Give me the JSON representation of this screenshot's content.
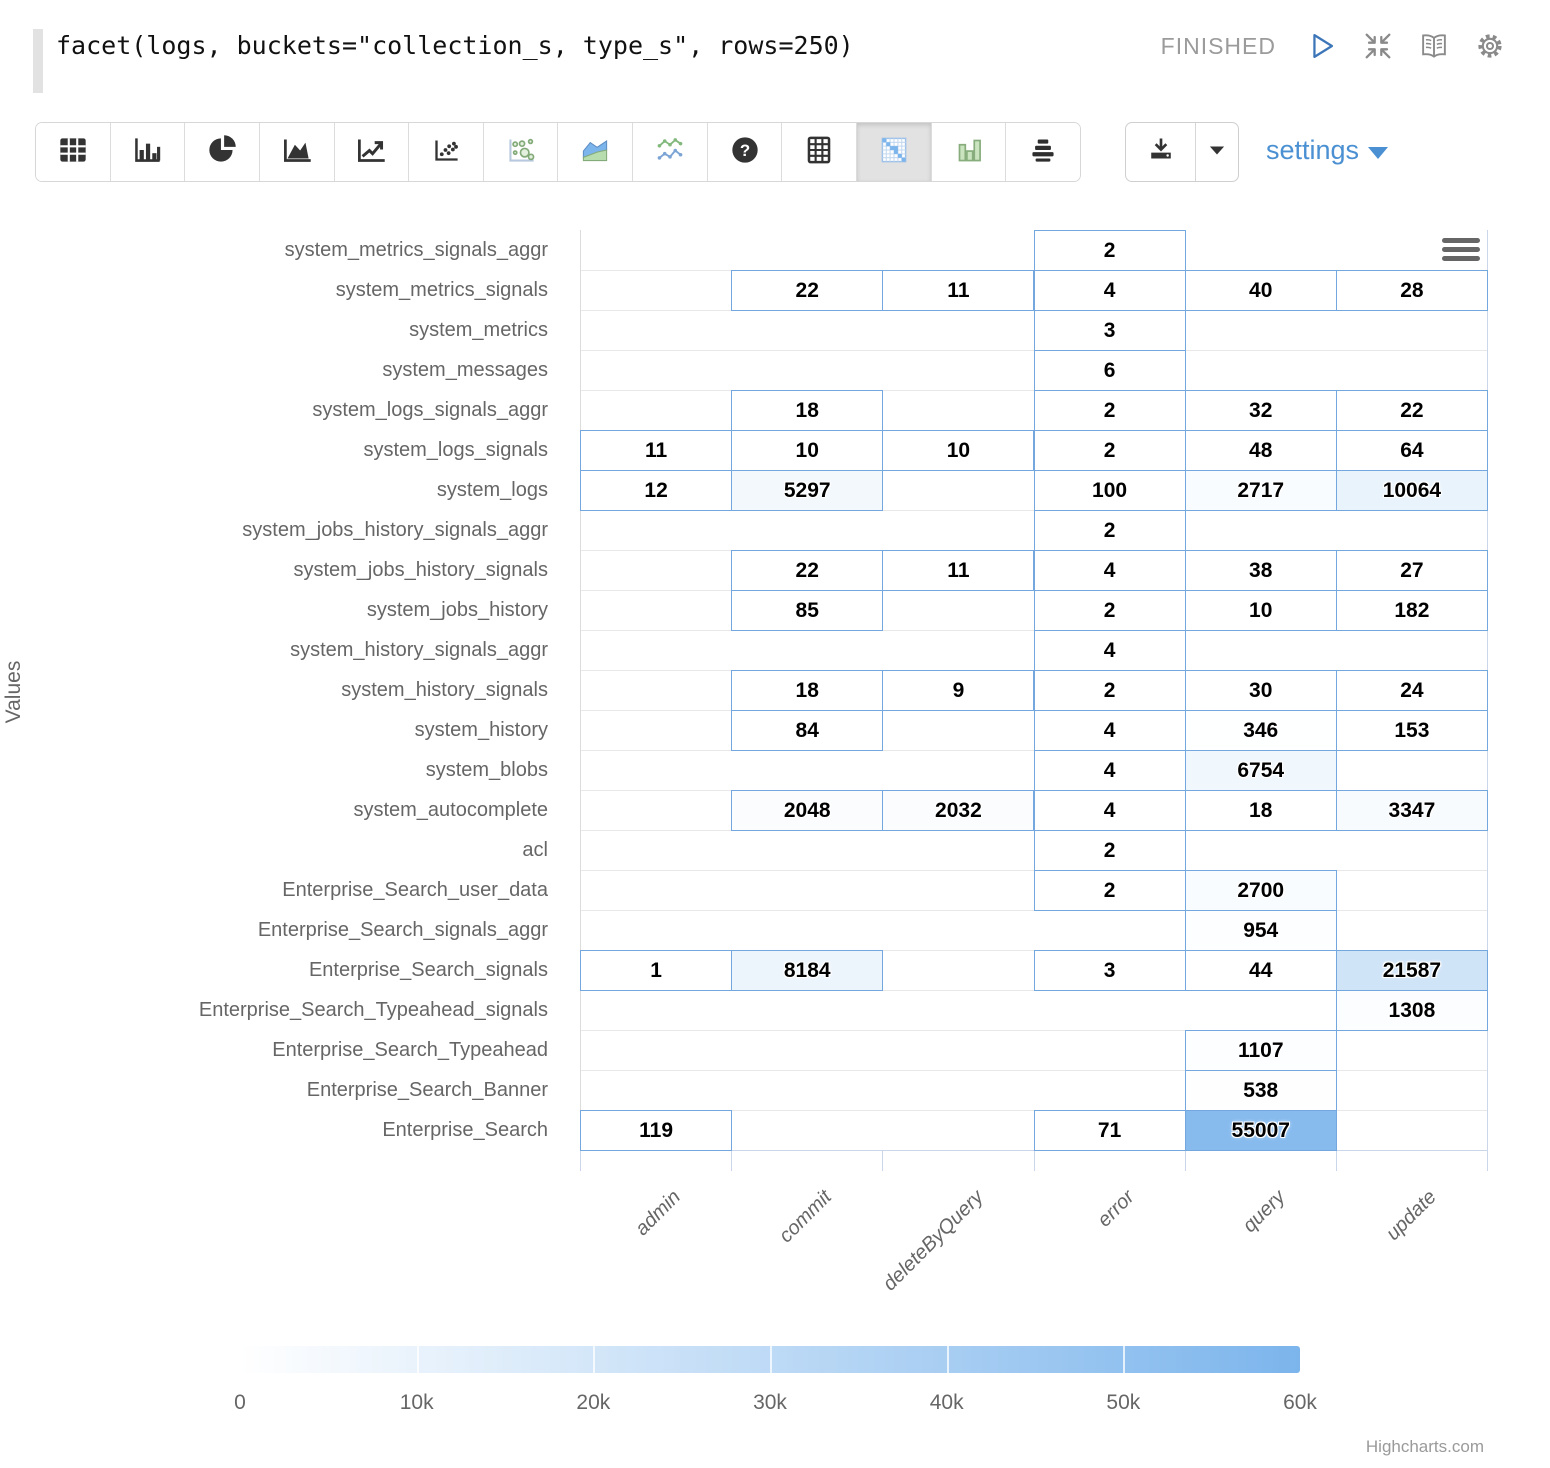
{
  "editor": {
    "query": "facet(logs, buckets=\"collection_s, type_s\", rows=250)",
    "status": "FINISHED",
    "actions": [
      {
        "icon": "play-icon"
      },
      {
        "icon": "shrink-icon"
      },
      {
        "icon": "book-icon"
      },
      {
        "icon": "gear-icon"
      }
    ]
  },
  "toolbar": {
    "chart_types": [
      {
        "icon": "table-icon",
        "selected": false
      },
      {
        "icon": "bar-chart-icon",
        "selected": false
      },
      {
        "icon": "pie-chart-icon",
        "selected": false
      },
      {
        "icon": "area-chart-icon",
        "selected": false
      },
      {
        "icon": "line-chart-icon",
        "selected": false
      },
      {
        "icon": "scatter-chart-icon",
        "selected": false
      },
      {
        "icon": "bubble-chart-icon",
        "selected": false
      },
      {
        "icon": "stacked-area-chart-icon",
        "selected": false
      },
      {
        "icon": "spline-chart-icon",
        "selected": false
      },
      {
        "icon": "help-icon",
        "selected": false
      },
      {
        "icon": "pivot-table-icon",
        "selected": false
      },
      {
        "icon": "heatmap-icon",
        "selected": true
      },
      {
        "icon": "column-chart-icon",
        "selected": false
      },
      {
        "icon": "funnel-chart-icon",
        "selected": false
      }
    ],
    "download": {
      "icon": "download-icon",
      "dropdown_icon": "caret-down-icon"
    },
    "settings_label": "settings"
  },
  "chart_data": {
    "type": "heatmap",
    "title": "",
    "xlabel": "",
    "ylabel": "Values",
    "credits": "Highcharts.com",
    "columns": [
      "admin",
      "commit",
      "deleteByQuery",
      "error",
      "query",
      "update"
    ],
    "rows_top_to_bottom": [
      {
        "name": "system_metrics_signals_aggr",
        "values": [
          null,
          null,
          null,
          2,
          null,
          null
        ]
      },
      {
        "name": "system_metrics_signals",
        "values": [
          null,
          22,
          11,
          4,
          40,
          28
        ]
      },
      {
        "name": "system_metrics",
        "values": [
          null,
          null,
          null,
          3,
          null,
          null
        ]
      },
      {
        "name": "system_messages",
        "values": [
          null,
          null,
          null,
          6,
          null,
          null
        ]
      },
      {
        "name": "system_logs_signals_aggr",
        "values": [
          null,
          18,
          null,
          2,
          32,
          22
        ]
      },
      {
        "name": "system_logs_signals",
        "values": [
          11,
          10,
          10,
          2,
          48,
          64
        ]
      },
      {
        "name": "system_logs",
        "values": [
          12,
          5297,
          null,
          100,
          2717,
          10064
        ]
      },
      {
        "name": "system_jobs_history_signals_aggr",
        "values": [
          null,
          null,
          null,
          2,
          null,
          null
        ]
      },
      {
        "name": "system_jobs_history_signals",
        "values": [
          null,
          22,
          11,
          4,
          38,
          27
        ]
      },
      {
        "name": "system_jobs_history",
        "values": [
          null,
          85,
          null,
          2,
          10,
          182
        ]
      },
      {
        "name": "system_history_signals_aggr",
        "values": [
          null,
          null,
          null,
          4,
          null,
          null
        ]
      },
      {
        "name": "system_history_signals",
        "values": [
          null,
          18,
          9,
          2,
          30,
          24
        ]
      },
      {
        "name": "system_history",
        "values": [
          null,
          84,
          null,
          4,
          346,
          153
        ]
      },
      {
        "name": "system_blobs",
        "values": [
          null,
          null,
          null,
          4,
          6754,
          null
        ]
      },
      {
        "name": "system_autocomplete",
        "values": [
          null,
          2048,
          2032,
          4,
          18,
          3347
        ]
      },
      {
        "name": "acl",
        "values": [
          null,
          null,
          null,
          2,
          null,
          null
        ]
      },
      {
        "name": "Enterprise_Search_user_data",
        "values": [
          null,
          null,
          null,
          2,
          2700,
          null
        ]
      },
      {
        "name": "Enterprise_Search_signals_aggr",
        "values": [
          null,
          null,
          null,
          null,
          954,
          null
        ]
      },
      {
        "name": "Enterprise_Search_signals",
        "values": [
          1,
          8184,
          null,
          3,
          44,
          21587
        ]
      },
      {
        "name": "Enterprise_Search_Typeahead_signals",
        "values": [
          null,
          null,
          null,
          null,
          null,
          1308
        ]
      },
      {
        "name": "Enterprise_Search_Typeahead",
        "values": [
          null,
          null,
          null,
          null,
          1107,
          null
        ]
      },
      {
        "name": "Enterprise_Search_Banner",
        "values": [
          null,
          null,
          null,
          null,
          538,
          null
        ]
      },
      {
        "name": "Enterprise_Search",
        "values": [
          119,
          null,
          null,
          71,
          55007,
          null
        ]
      }
    ],
    "color_axis": {
      "min": 0,
      "max": 60000,
      "min_color": "#ffffff",
      "max_color": "#7cb5ec",
      "tick_values": [
        0,
        10000,
        20000,
        30000,
        40000,
        50000,
        60000
      ],
      "tick_labels": [
        "0",
        "10k",
        "20k",
        "30k",
        "40k",
        "50k",
        "60k"
      ]
    },
    "colors": {
      "cell_border": "#74a7dd",
      "grid_line": "#e8e8e8",
      "axis_line": "#ccd6eb",
      "label_color": "#666666"
    },
    "legend_position": "bottom",
    "grid": true
  }
}
